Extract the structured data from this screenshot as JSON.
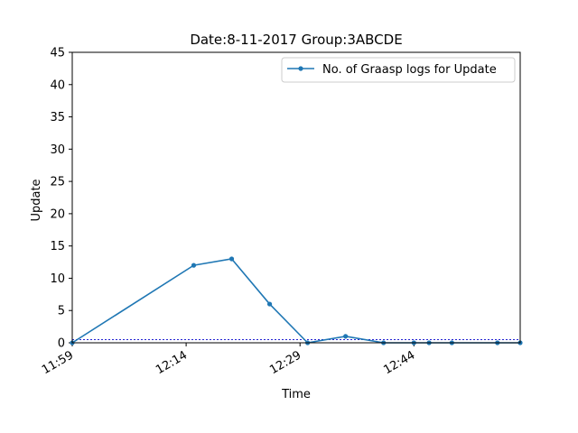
{
  "chart_data": {
    "type": "line",
    "title": "Date:8-11-2017  Group:3ABCDE",
    "xlabel": "Time",
    "ylabel": "Update",
    "x_ticks": [
      "11:59",
      "12:14",
      "12:29",
      "12:44"
    ],
    "y_ticks": [
      "0",
      "5",
      "10",
      "15",
      "20",
      "25",
      "30",
      "35",
      "40",
      "45"
    ],
    "xlim": [
      "11:59",
      "12:58"
    ],
    "ylim": [
      0,
      45
    ],
    "grid": false,
    "legend_position": "top-right",
    "series": [
      {
        "name": "No. of Graasp logs for Update",
        "color": "#1f77b4",
        "marker": "dot",
        "points": [
          {
            "x": "11:59",
            "y": 0
          },
          {
            "x": "12:15",
            "y": 12
          },
          {
            "x": "12:20",
            "y": 13
          },
          {
            "x": "12:25",
            "y": 6
          },
          {
            "x": "12:30",
            "y": 0
          },
          {
            "x": "12:35",
            "y": 1
          },
          {
            "x": "12:40",
            "y": 0
          },
          {
            "x": "12:44",
            "y": 0
          },
          {
            "x": "12:46",
            "y": 0
          },
          {
            "x": "12:49",
            "y": 0
          },
          {
            "x": "12:55",
            "y": 0
          },
          {
            "x": "12:58",
            "y": 0
          }
        ]
      }
    ],
    "reference_lines": [
      {
        "y": 0.5,
        "color": "#0000cc",
        "style": "dashed"
      },
      {
        "y": 0,
        "color": "#000000",
        "style": "solid"
      }
    ]
  }
}
